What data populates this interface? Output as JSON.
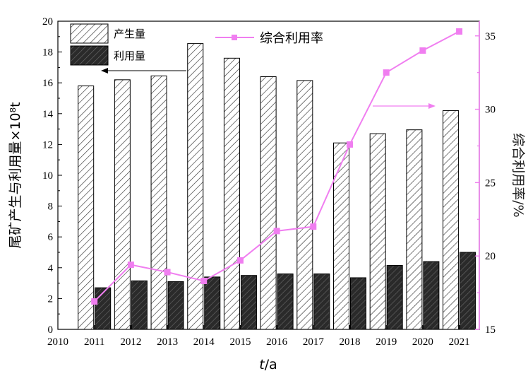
{
  "chart_data": {
    "type": "bar",
    "categories": [
      "2011",
      "2012",
      "2013",
      "2014",
      "2015",
      "2016",
      "2017",
      "2018",
      "2019",
      "2020",
      "2021"
    ],
    "x_ticks": [
      "2010",
      "2011",
      "2012",
      "2013",
      "2014",
      "2015",
      "2016",
      "2017",
      "2018",
      "2019",
      "2020",
      "2021"
    ],
    "xlabel_italic": "t",
    "xlabel_rest": "/a",
    "ylabel_left": "尾矿产生与利用量×10⁸t",
    "ylabel_right": "综合利用率/%",
    "ylim_left": [
      0,
      20
    ],
    "ylim_right": [
      15,
      36
    ],
    "yticks_left": [
      "0",
      "2",
      "4",
      "6",
      "8",
      "10",
      "12",
      "14",
      "16",
      "18",
      "20"
    ],
    "yticks_right": [
      "15",
      "20",
      "25",
      "30",
      "35"
    ],
    "series": [
      {
        "name": "产生量",
        "kind": "bar",
        "axis": "left",
        "values": [
          15.8,
          16.2,
          16.45,
          18.55,
          17.6,
          16.4,
          16.15,
          12.1,
          12.7,
          12.95,
          14.2
        ]
      },
      {
        "name": "利用量",
        "kind": "bar",
        "axis": "left",
        "values": [
          2.7,
          3.15,
          3.1,
          3.4,
          3.5,
          3.6,
          3.6,
          3.35,
          4.15,
          4.4,
          5.0
        ]
      },
      {
        "name": "综合利用率",
        "kind": "line",
        "axis": "right",
        "values": [
          16.9,
          19.4,
          18.9,
          18.3,
          19.7,
          21.7,
          22.0,
          27.6,
          32.5,
          34.0,
          35.3
        ]
      }
    ],
    "colors": {
      "line": "#f07ef0",
      "bar_dark": "#2a2a2a",
      "hatch": "#333333"
    },
    "grid": false,
    "legend_placement": "top-left / top-center"
  }
}
